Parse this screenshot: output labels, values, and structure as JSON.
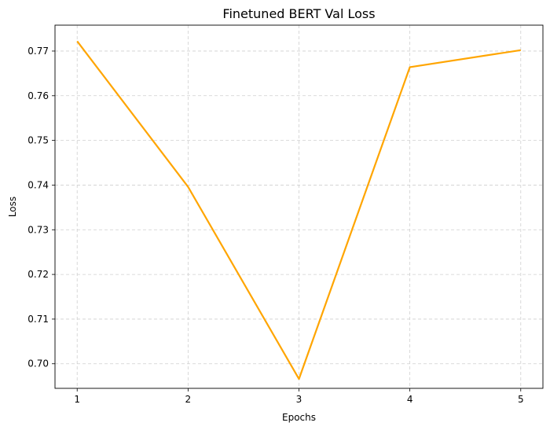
{
  "chart_data": {
    "type": "line",
    "title": "Finetuned BERT Val Loss",
    "xlabel": "Epochs",
    "ylabel": "Loss",
    "x": [
      1,
      2,
      3,
      4,
      5
    ],
    "xticks": [
      "1",
      "2",
      "3",
      "4",
      "5"
    ],
    "yticks": [
      "0.70",
      "0.71",
      "0.72",
      "0.73",
      "0.74",
      "0.75",
      "0.76",
      "0.77"
    ],
    "xlim": [
      0.8,
      5.2
    ],
    "ylim": [
      0.6945,
      0.7758
    ],
    "series": [
      {
        "values": [
          0.7722,
          0.7396,
          0.6966,
          0.7664,
          0.7702
        ],
        "color": "#ffa500"
      }
    ],
    "grid": true,
    "grid_style": "dashed",
    "legend": "none"
  }
}
